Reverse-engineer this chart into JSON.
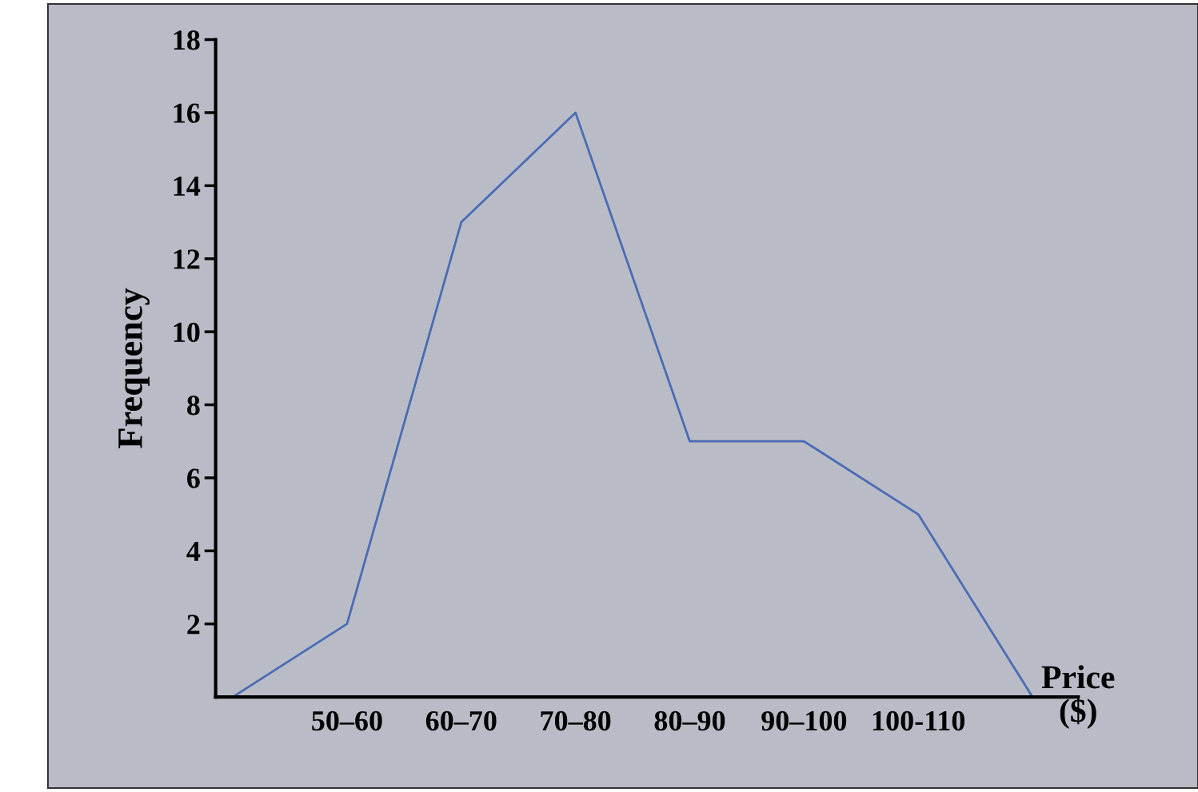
{
  "chart_data": {
    "type": "line",
    "xlabel": "Price\n($)",
    "ylabel": "Frequency",
    "categories": [
      null,
      "50–60",
      "60–70",
      "70–80",
      "80–90",
      "90–100",
      "100-110",
      null
    ],
    "series": [
      {
        "color": "#4a6bb5",
        "values": [
          0,
          2,
          13,
          16,
          7,
          7,
          5,
          0
        ]
      }
    ],
    "ylim": [
      0,
      18
    ],
    "yticks": [
      2,
      4,
      6,
      8,
      10,
      12,
      14,
      16,
      18
    ],
    "grid": false,
    "legend": false,
    "marker": "none",
    "line_style": "solid"
  }
}
